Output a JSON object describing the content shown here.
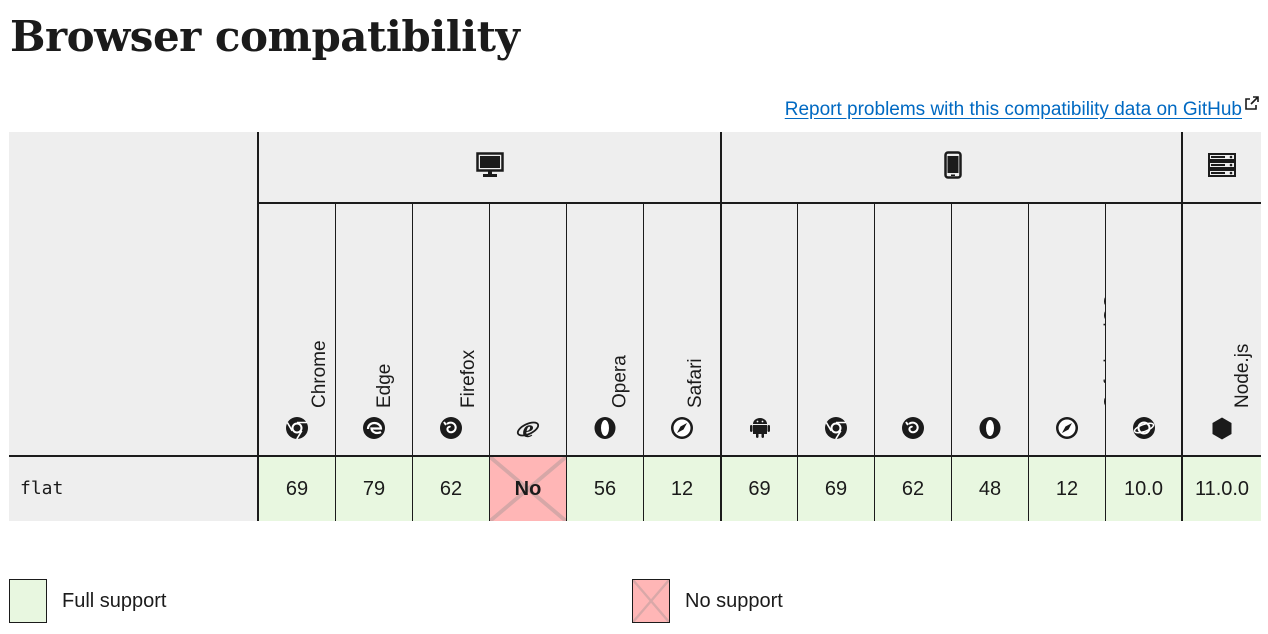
{
  "page": {
    "title": "Browser compatibility",
    "report_link": "Report problems with this compatibility data on GitHub"
  },
  "groups": [
    {
      "name": "desktop",
      "icon": "desktop-icon"
    },
    {
      "name": "mobile",
      "icon": "mobile-icon"
    },
    {
      "name": "server",
      "icon": "server-icon"
    }
  ],
  "browsers": [
    {
      "name": "Chrome",
      "icon": "chrome-icon"
    },
    {
      "name": "Edge",
      "icon": "edge-icon"
    },
    {
      "name": "Firefox",
      "icon": "firefox-icon"
    },
    {
      "name": "Internet Explorer",
      "icon": "internet-explorer-icon"
    },
    {
      "name": "Opera",
      "icon": "opera-icon"
    },
    {
      "name": "Safari",
      "icon": "safari-icon"
    },
    {
      "name": "WebView Android",
      "icon": "android-icon"
    },
    {
      "name": "Chrome Android",
      "icon": "chrome-icon"
    },
    {
      "name": "Firefox for Android",
      "icon": "firefox-icon"
    },
    {
      "name": "Opera Android",
      "icon": "opera-icon"
    },
    {
      "name": "Safari on iOS",
      "icon": "safari-icon"
    },
    {
      "name": "Samsung Internet",
      "icon": "samsung-internet-icon"
    },
    {
      "name": "Node.js",
      "icon": "nodejs-icon"
    }
  ],
  "feature": {
    "name": "flat",
    "support": [
      "69",
      "79",
      "62",
      "No",
      "56",
      "12",
      "69",
      "69",
      "62",
      "48",
      "12",
      "10.0",
      "11.0.0"
    ],
    "status": [
      "full",
      "full",
      "full",
      "no",
      "full",
      "full",
      "full",
      "full",
      "full",
      "full",
      "full",
      "full",
      "full"
    ]
  },
  "legend": {
    "full_support": "Full support",
    "no_support": "No support"
  },
  "colors": {
    "full_support": "#e8f7e0",
    "no_support": "#ffb6b6",
    "header_bg": "#eeeeee",
    "link": "#0069c2"
  }
}
